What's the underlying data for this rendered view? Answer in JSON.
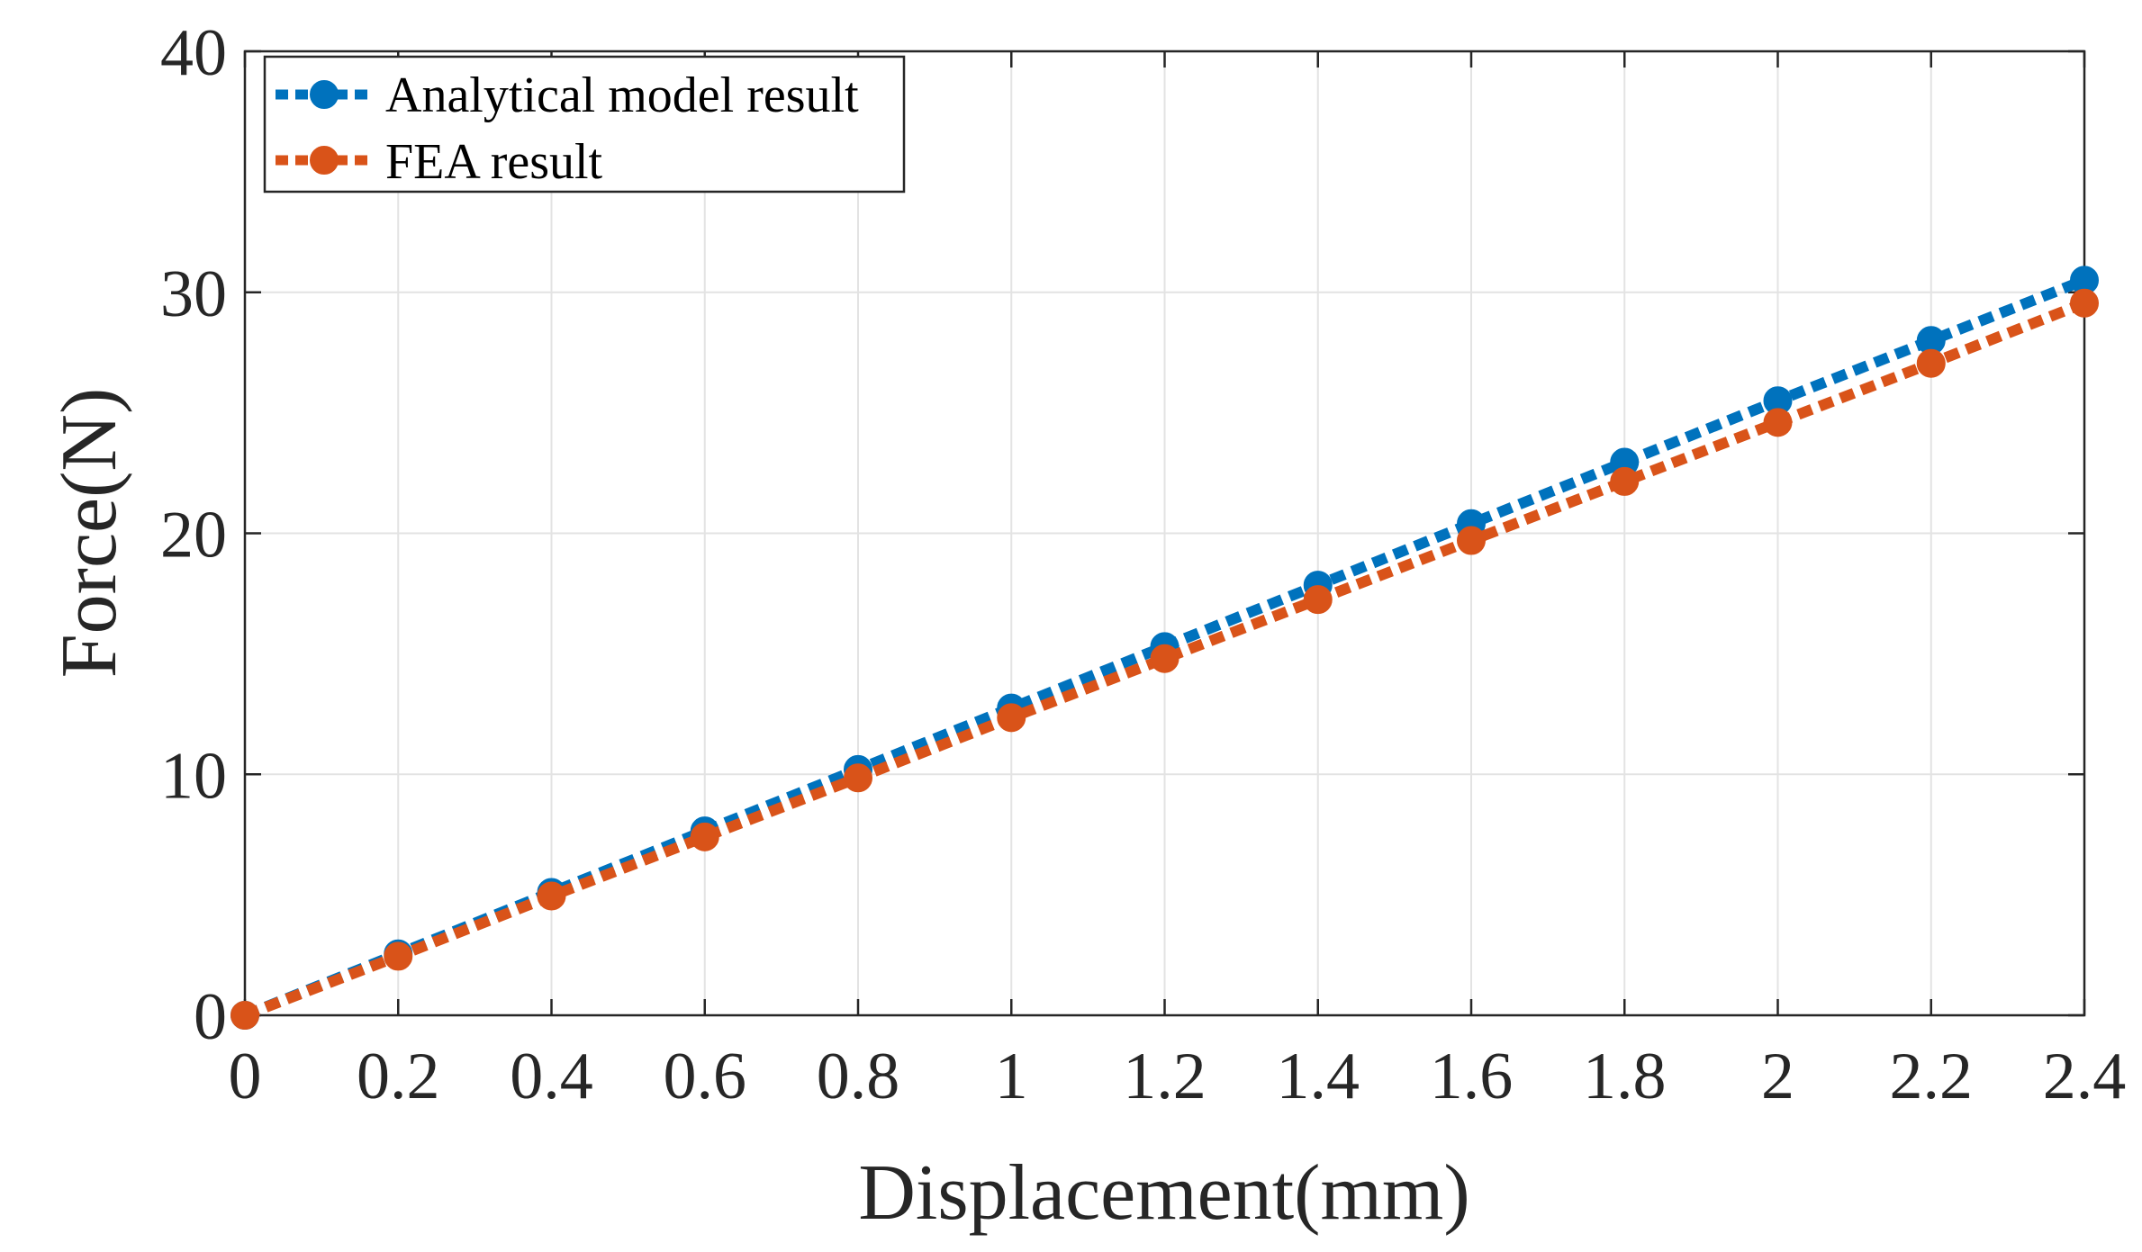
{
  "chart_data": {
    "type": "line",
    "title": "",
    "xlabel": "Displacement(mm)",
    "ylabel": "Force(N)",
    "xlim": [
      0,
      2.4
    ],
    "ylim": [
      0,
      40
    ],
    "grid": true,
    "legend_position": "top-left",
    "x": [
      0,
      0.2,
      0.4,
      0.6,
      0.8,
      1.0,
      1.2,
      1.4,
      1.6,
      1.8,
      2.0,
      2.2,
      2.4
    ],
    "xticks": [
      "0",
      "0.2",
      "0.4",
      "0.6",
      "0.8",
      "1",
      "1.2",
      "1.4",
      "1.6",
      "1.8",
      "2",
      "2.2",
      "2.4"
    ],
    "yticks": [
      "0",
      "10",
      "20",
      "30",
      "40"
    ],
    "series": [
      {
        "name": "Analytical model result",
        "color": "#0072BD",
        "values": [
          0,
          2.55,
          5.1,
          7.65,
          10.2,
          12.75,
          15.3,
          17.85,
          20.4,
          22.95,
          25.5,
          28.0,
          30.5
        ]
      },
      {
        "name": "FEA result",
        "color": "#D95319",
        "values": [
          0,
          2.45,
          4.95,
          7.4,
          9.85,
          12.35,
          14.8,
          17.25,
          19.7,
          22.15,
          24.6,
          27.05,
          29.55
        ]
      }
    ]
  }
}
